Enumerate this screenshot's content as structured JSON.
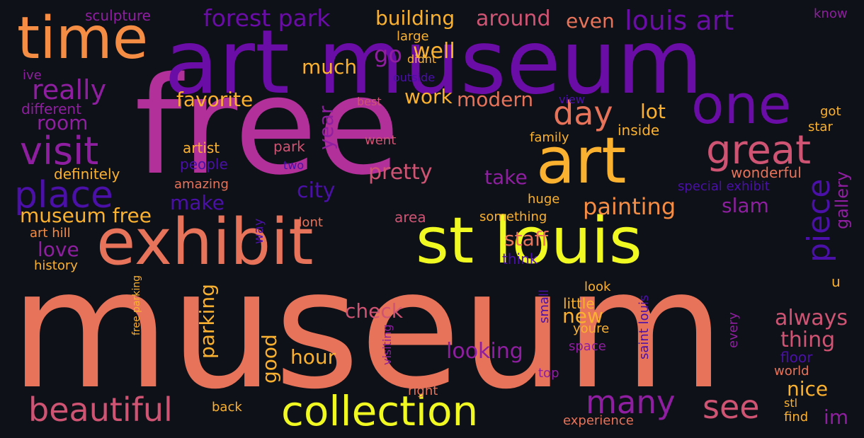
{
  "palette": {
    "background": "#0e1117",
    "indigo": "#4a10a8",
    "violet": "#6a0ca6",
    "purple": "#8f1fa0",
    "magenta": "#b2309a",
    "rose": "#cf5474",
    "salmon": "#e7735a",
    "orange": "#f68d45",
    "amber": "#fbb130",
    "yellow": "#f0f921"
  },
  "words": [
    {
      "text": "museum",
      "color": "salmon"
    },
    {
      "text": "free",
      "color": "magenta"
    },
    {
      "text": "art museum",
      "color": "violet"
    },
    {
      "text": "time",
      "color": "orange"
    },
    {
      "text": "one",
      "color": "violet"
    },
    {
      "text": "art",
      "color": "amber"
    },
    {
      "text": "st louis",
      "color": "yellow"
    },
    {
      "text": "exhibit",
      "color": "salmon"
    },
    {
      "text": "collection",
      "color": "yellow"
    },
    {
      "text": "beautiful",
      "color": "rose"
    },
    {
      "text": "great",
      "color": "rose"
    },
    {
      "text": "visit",
      "color": "purple"
    },
    {
      "text": "place",
      "color": "indigo"
    },
    {
      "text": "day",
      "color": "salmon"
    },
    {
      "text": "many",
      "color": "purple"
    },
    {
      "text": "see",
      "color": "rose"
    },
    {
      "text": "piece",
      "color": "indigo"
    },
    {
      "text": "really",
      "color": "purple"
    },
    {
      "text": "louis art",
      "color": "violet"
    },
    {
      "text": "forest park",
      "color": "violet"
    },
    {
      "text": "building",
      "color": "amber"
    },
    {
      "text": "around",
      "color": "rose"
    },
    {
      "text": "even",
      "color": "salmon"
    },
    {
      "text": "painting",
      "color": "orange"
    },
    {
      "text": "slam",
      "color": "purple"
    },
    {
      "text": "museum free",
      "color": "amber"
    },
    {
      "text": "much",
      "color": "amber"
    },
    {
      "text": "go",
      "color": "purple"
    },
    {
      "text": "well",
      "color": "amber"
    },
    {
      "text": "favorite",
      "color": "amber"
    },
    {
      "text": "work",
      "color": "amber"
    },
    {
      "text": "modern",
      "color": "salmon"
    },
    {
      "text": "lot",
      "color": "amber"
    },
    {
      "text": "room",
      "color": "purple"
    },
    {
      "text": "year",
      "color": "purple"
    },
    {
      "text": "pretty",
      "color": "rose"
    },
    {
      "text": "city",
      "color": "indigo"
    },
    {
      "text": "take",
      "color": "purple"
    },
    {
      "text": "make",
      "color": "indigo"
    },
    {
      "text": "staff",
      "color": "salmon"
    },
    {
      "text": "love",
      "color": "purple"
    },
    {
      "text": "check",
      "color": "rose"
    },
    {
      "text": "new",
      "color": "amber"
    },
    {
      "text": "always",
      "color": "rose"
    },
    {
      "text": "thing",
      "color": "rose"
    },
    {
      "text": "parking",
      "color": "amber"
    },
    {
      "text": "good",
      "color": "amber"
    },
    {
      "text": "hour",
      "color": "amber"
    },
    {
      "text": "looking",
      "color": "purple"
    },
    {
      "text": "nice",
      "color": "amber"
    },
    {
      "text": "im",
      "color": "purple"
    },
    {
      "text": "gallery",
      "color": "purple"
    },
    {
      "text": "artist",
      "color": "amber"
    },
    {
      "text": "definitely",
      "color": "amber"
    },
    {
      "text": "different",
      "color": "purple"
    },
    {
      "text": "people",
      "color": "indigo"
    },
    {
      "text": "amazing",
      "color": "salmon"
    },
    {
      "text": "park",
      "color": "rose"
    },
    {
      "text": "two",
      "color": "indigo"
    },
    {
      "text": "went",
      "color": "rose"
    },
    {
      "text": "best",
      "color": "rose"
    },
    {
      "text": "outside",
      "color": "indigo"
    },
    {
      "text": "didnt",
      "color": "amber"
    },
    {
      "text": "large",
      "color": "amber"
    },
    {
      "text": "sculpture",
      "color": "purple"
    },
    {
      "text": "ive",
      "color": "purple"
    },
    {
      "text": "know",
      "color": "purple"
    },
    {
      "text": "view",
      "color": "indigo"
    },
    {
      "text": "got",
      "color": "amber"
    },
    {
      "text": "star",
      "color": "amber"
    },
    {
      "text": "inside",
      "color": "amber"
    },
    {
      "text": "family",
      "color": "amber"
    },
    {
      "text": "wonderful",
      "color": "salmon"
    },
    {
      "text": "special exhibit",
      "color": "indigo"
    },
    {
      "text": "huge",
      "color": "amber"
    },
    {
      "text": "area",
      "color": "rose"
    },
    {
      "text": "something",
      "color": "amber"
    },
    {
      "text": "dont",
      "color": "salmon"
    },
    {
      "text": "way",
      "color": "indigo"
    },
    {
      "text": "art hill",
      "color": "orange"
    },
    {
      "text": "history",
      "color": "amber"
    },
    {
      "text": "think",
      "color": "indigo"
    },
    {
      "text": "u",
      "color": "amber"
    },
    {
      "text": "look",
      "color": "amber"
    },
    {
      "text": "little",
      "color": "amber"
    },
    {
      "text": "small",
      "color": "indigo"
    },
    {
      "text": "saint louis",
      "color": "indigo"
    },
    {
      "text": "youre",
      "color": "amber"
    },
    {
      "text": "space",
      "color": "purple"
    },
    {
      "text": "every",
      "color": "purple"
    },
    {
      "text": "floor",
      "color": "indigo"
    },
    {
      "text": "world",
      "color": "salmon"
    },
    {
      "text": "visiting",
      "color": "purple"
    },
    {
      "text": "top",
      "color": "purple"
    },
    {
      "text": "right",
      "color": "salmon"
    },
    {
      "text": "free parking",
      "color": "amber"
    },
    {
      "text": "back",
      "color": "amber"
    },
    {
      "text": "experience",
      "color": "salmon"
    },
    {
      "text": "stl",
      "color": "amber"
    },
    {
      "text": "find",
      "color": "amber"
    }
  ]
}
